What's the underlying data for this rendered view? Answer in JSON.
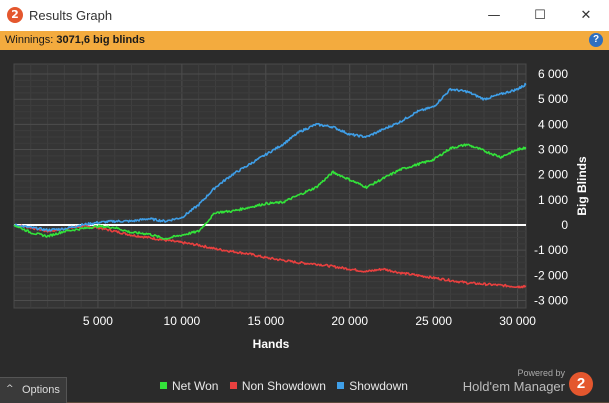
{
  "window": {
    "title": "Results Graph",
    "minimize_icon": "minimize-icon",
    "maximize_icon": "maximize-icon",
    "close_icon": "close-icon",
    "minimize_glyph": "—",
    "maximize_glyph": "☐",
    "close_glyph": "✕",
    "app_icon_text": "2"
  },
  "status": {
    "label": "Winnings: ",
    "value": "3071,6 big blinds",
    "help_glyph": "?"
  },
  "chart_data": {
    "type": "line",
    "xlabel": "Hands",
    "ylabel": "Big Blinds",
    "xlim": [
      0,
      30500
    ],
    "ylim": [
      -3300,
      6400
    ],
    "xticks": [
      5000,
      10000,
      15000,
      20000,
      25000,
      30000
    ],
    "xtick_labels": [
      "5 000",
      "10 000",
      "15 000",
      "20 000",
      "25 000",
      "30 000"
    ],
    "yticks": [
      6000,
      5000,
      4000,
      3000,
      2000,
      1000,
      0,
      -1000,
      -2000,
      -3000
    ],
    "ytick_labels": [
      "6 000",
      "5 000",
      "4 000",
      "3 000",
      "2 000",
      "1 000",
      "0",
      "-1 000",
      "-2 000",
      "-3 000"
    ],
    "grid": true,
    "legend_position": "bottom",
    "series": [
      {
        "name": "Net Won",
        "color": "#33e23a",
        "x": [
          0,
          1000,
          2000,
          3000,
          4000,
          5000,
          6000,
          7000,
          8000,
          9000,
          10000,
          11000,
          12000,
          13000,
          14000,
          15000,
          16000,
          17000,
          18000,
          19000,
          20000,
          21000,
          22000,
          23000,
          24000,
          25000,
          26000,
          27000,
          28000,
          29000,
          30000,
          30500
        ],
        "values": [
          0,
          -300,
          -450,
          -250,
          -150,
          -50,
          -100,
          -300,
          -350,
          -550,
          -400,
          -250,
          500,
          550,
          700,
          850,
          900,
          1200,
          1500,
          2100,
          1800,
          1500,
          1850,
          2200,
          2400,
          2600,
          3050,
          3200,
          2950,
          2700,
          3000,
          3080
        ]
      },
      {
        "name": "Non Showdown",
        "color": "#e8403f",
        "x": [
          0,
          1000,
          2000,
          3000,
          4000,
          5000,
          6000,
          7000,
          8000,
          9000,
          10000,
          11000,
          12000,
          13000,
          14000,
          15000,
          16000,
          17000,
          18000,
          19000,
          20000,
          21000,
          22000,
          23000,
          24000,
          25000,
          26000,
          27000,
          28000,
          29000,
          30000,
          30500
        ],
        "values": [
          0,
          -100,
          -250,
          -150,
          -50,
          -100,
          -250,
          -400,
          -500,
          -600,
          -700,
          -800,
          -950,
          -1050,
          -1150,
          -1300,
          -1400,
          -1500,
          -1550,
          -1650,
          -1750,
          -1850,
          -1750,
          -1900,
          -2000,
          -2100,
          -2200,
          -2300,
          -2350,
          -2400,
          -2450,
          -2450
        ]
      },
      {
        "name": "Showdown",
        "color": "#3f9fe8",
        "x": [
          0,
          1000,
          2000,
          3000,
          4000,
          5000,
          6000,
          7000,
          8000,
          9000,
          10000,
          11000,
          12000,
          13000,
          14000,
          15000,
          16000,
          17000,
          18000,
          19000,
          20000,
          21000,
          22000,
          23000,
          24000,
          25000,
          26000,
          27000,
          28000,
          29000,
          30000,
          30500
        ],
        "values": [
          0,
          -100,
          -200,
          -150,
          0,
          100,
          150,
          150,
          250,
          150,
          300,
          800,
          1500,
          2000,
          2400,
          2800,
          3200,
          3700,
          4000,
          3900,
          3600,
          3500,
          3800,
          4100,
          4500,
          4700,
          5400,
          5300,
          5000,
          5200,
          5400,
          5600
        ]
      }
    ]
  },
  "footer": {
    "options_label": "Options",
    "options_chevron": "^",
    "powered_by": "Powered by",
    "brand_name": "Hold'em Manager",
    "brand_logo_text": "2"
  }
}
